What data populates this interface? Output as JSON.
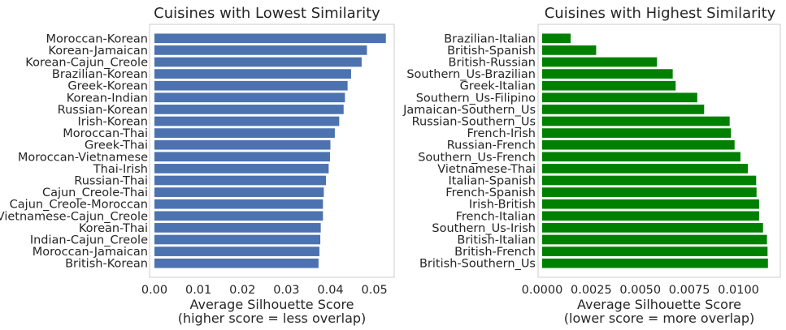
{
  "chart_data": [
    {
      "type": "bar",
      "orientation": "horizontal",
      "title": "Cuisines with Lowest Similarity",
      "xlabel": "Average Silhouette Score",
      "xlabel2": "(higher score = less overlap)",
      "ylabel": "",
      "xlim": [
        0,
        0.0545
      ],
      "xticks": [
        "0.00",
        "0.01",
        "0.02",
        "0.03",
        "0.04",
        "0.05"
      ],
      "xtick_values": [
        0,
        0.01,
        0.02,
        0.03,
        0.04,
        0.05
      ],
      "color": "#4c72b0",
      "grid": false,
      "categories": [
        "Moroccan-Korean",
        "Korean-Jamaican",
        "Korean-Cajun_Creole",
        "Brazilian-Korean",
        "Greek-Korean",
        "Korean-Indian",
        "Russian-Korean",
        "Irish-Korean",
        "Moroccan-Thai",
        "Greek-Thai",
        "Moroccan-Vietnamese",
        "Thai-Irish",
        "Russian-Thai",
        "Cajun_Creole-Thai",
        "Cajun_Creole-Moroccan",
        "Vietnamese-Cajun_Creole",
        "Korean-Thai",
        "Indian-Cajun_Creole",
        "Moroccan-Jamaican",
        "British-Korean"
      ],
      "values": [
        0.0526,
        0.0483,
        0.0471,
        0.0447,
        0.0439,
        0.0433,
        0.043,
        0.042,
        0.041,
        0.04,
        0.0399,
        0.0396,
        0.039,
        0.0385,
        0.0383,
        0.0383,
        0.0378,
        0.0377,
        0.0375,
        0.0373
      ]
    },
    {
      "type": "bar",
      "orientation": "horizontal",
      "title": "Cuisines with Highest Similarity",
      "xlabel": "Average Silhouette Score",
      "xlabel2": "(lower score = more overlap)",
      "ylabel": "",
      "xlim": [
        0,
        0.01213
      ],
      "xticks": [
        "0.0000",
        "0.0025",
        "0.0050",
        "0.0075",
        "0.0100"
      ],
      "xtick_values": [
        0,
        0.0025,
        0.005,
        0.0075,
        0.01
      ],
      "color": "#008000",
      "grid": false,
      "categories": [
        "Brazilian-Italian",
        "British-Spanish",
        "British-Russian",
        "Southern_Us-Brazilian",
        "Greek-Italian",
        "Southern_Us-Filipino",
        "Jamaican-Southern_Us",
        "Russian-Southern_Us",
        "French-Irish",
        "Russian-French",
        "Southern_Us-French",
        "Vietnamese-Thai",
        "Italian-Spanish",
        "French-Spanish",
        "Irish-British",
        "French-Italian",
        "Southern_Us-Irish",
        "British-Italian",
        "British-French",
        "British-Southern_Us"
      ],
      "values": [
        0.00145,
        0.00275,
        0.00585,
        0.00665,
        0.0068,
        0.0079,
        0.00825,
        0.00955,
        0.00962,
        0.0098,
        0.0101,
        0.01048,
        0.0109,
        0.01092,
        0.01105,
        0.01105,
        0.01125,
        0.01145,
        0.01148,
        0.0115
      ]
    }
  ]
}
